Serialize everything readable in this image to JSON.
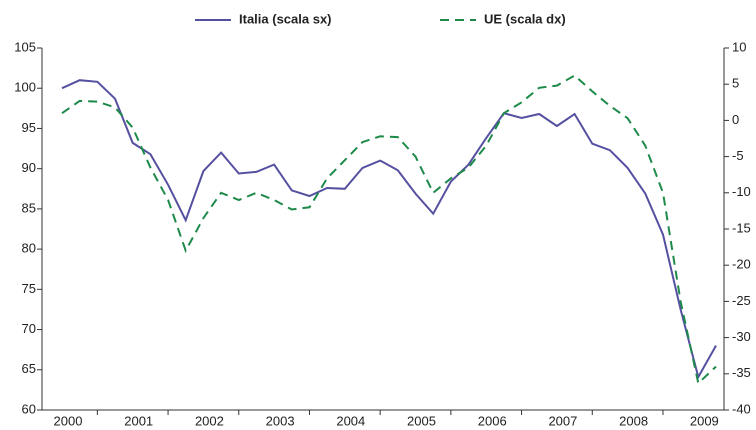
{
  "chart_data": {
    "type": "line",
    "categories": [
      "2000",
      null,
      null,
      null,
      "2001",
      null,
      null,
      null,
      "2002",
      null,
      null,
      null,
      "2003",
      null,
      null,
      null,
      "2004",
      null,
      null,
      null,
      "2005",
      null,
      null,
      null,
      "2006",
      null,
      null,
      null,
      "2007",
      null,
      null,
      null,
      "2008",
      null,
      null,
      null,
      "2009",
      null
    ],
    "series": [
      {
        "name": "Italia  (scala sx)",
        "color": "#5550a0",
        "axis": "y",
        "values": [
          100,
          101,
          100.8,
          98.7,
          93.2,
          91.8,
          88,
          83.6,
          89.7,
          92,
          89.4,
          89.6,
          90.5,
          87.3,
          86.6,
          87.6,
          87.5,
          90.1,
          91,
          89.8,
          86.9,
          84.4,
          88.4,
          90.5,
          93.8,
          96.9,
          96.3,
          96.8,
          95.3,
          96.8,
          93.1,
          92.3,
          90.1,
          86.9,
          81.8,
          72.5,
          64.1,
          68
        ]
      },
      {
        "name": "UE  (scala dx)",
        "color": "#1e8a4a",
        "axis": "y2",
        "values": [
          1,
          2.7,
          2.6,
          1.8,
          -1,
          -6.5,
          -11,
          -18,
          -13.5,
          -10,
          -11,
          -10,
          -11,
          -12.3,
          -12,
          -8,
          -5.5,
          -3,
          -2.2,
          -2.3,
          -5,
          -10,
          -8,
          -6.5,
          -3.5,
          1,
          2.5,
          4.5,
          4.8,
          6.2,
          4,
          2,
          0.3,
          -3.5,
          -10,
          -25,
          -36.3,
          -34
        ]
      }
    ],
    "ylim": [
      60,
      105
    ],
    "yticks": [
      60,
      65,
      70,
      75,
      80,
      85,
      90,
      95,
      100,
      105
    ],
    "y2lim": [
      -40,
      10
    ],
    "y2ticks": [
      -40,
      -35,
      -30,
      -25,
      -20,
      -15,
      -10,
      -5,
      0,
      5,
      10
    ],
    "legend": "top"
  }
}
